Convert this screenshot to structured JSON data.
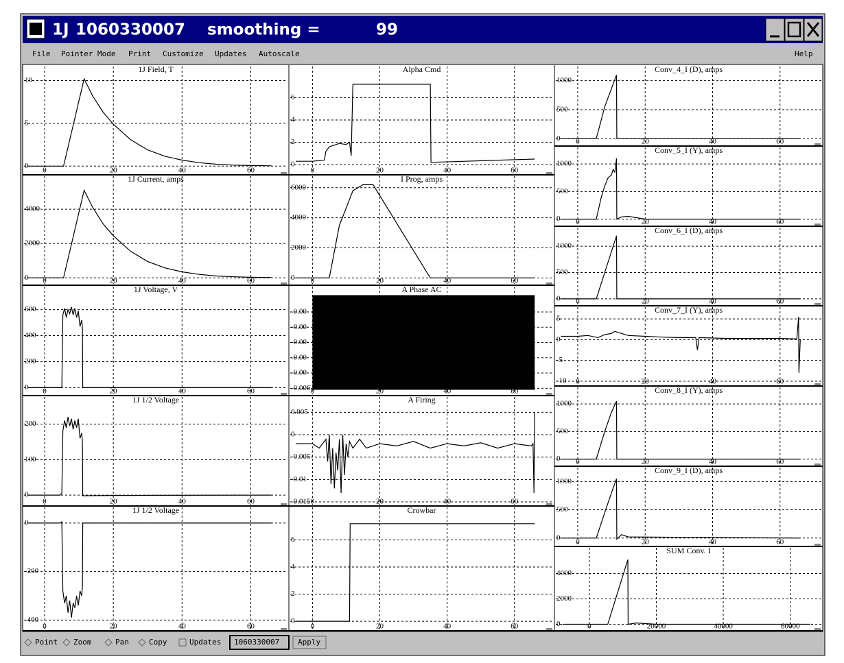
{
  "window": {
    "title": [
      "1J",
      "1060330007",
      "smoothing =",
      "99"
    ]
  },
  "menu": [
    "File",
    "Pointer Mode",
    "Print",
    "Customize",
    "Updates",
    "Autoscale",
    "Help"
  ],
  "toolbar": {
    "options": [
      "Point",
      "Zoom",
      "Pan",
      "Copy"
    ],
    "checkbox": "Updates",
    "input": "1060330007",
    "button": "Apply"
  },
  "chart_data": [
    {
      "type": "line",
      "title": "1J Field, T",
      "xlim": [
        -6,
        67.5
      ],
      "ylim": [
        -0.7,
        11
      ],
      "xticks": [
        0,
        20,
        40,
        60
      ],
      "yticks": [
        0,
        5,
        10
      ],
      "grid": true,
      "series": [
        {
          "color": "#000000",
          "x": [
            -5,
            5.5,
            11.5,
            14,
            17,
            20,
            25,
            30,
            35,
            40,
            45,
            50,
            55,
            60,
            66
          ],
          "values": [
            0,
            0,
            10.2,
            8.2,
            6.3,
            4.9,
            3.1,
            1.9,
            1.15,
            0.7,
            0.4,
            0.22,
            0.12,
            0.07,
            0.04
          ]
        }
      ]
    },
    {
      "type": "line",
      "title": "1J Current, amps",
      "xlim": [
        -6,
        67.5
      ],
      "ylim": [
        -270,
        5600
      ],
      "xticks": [
        0,
        20,
        40,
        60
      ],
      "yticks": [
        0,
        2000,
        4000
      ],
      "grid": true,
      "series": [
        {
          "color": "#000000",
          "x": [
            -5,
            5.5,
            11.5,
            14,
            17,
            20,
            25,
            30,
            35,
            40,
            45,
            50,
            55,
            60,
            66
          ],
          "values": [
            0,
            0,
            5100,
            4100,
            3150,
            2450,
            1550,
            950,
            580,
            350,
            200,
            110,
            60,
            35,
            20
          ]
        }
      ]
    },
    {
      "type": "line",
      "title": "1J Voltage, V",
      "xlim": [
        -6,
        67.5
      ],
      "ylim": [
        -40,
        735
      ],
      "xticks": [
        0,
        20,
        40,
        60
      ],
      "yticks": [
        0,
        200,
        400,
        600
      ],
      "grid": true,
      "series": [
        {
          "color": "#000000",
          "x": [
            -5,
            5,
            5.3,
            5.8,
            6.3,
            6.8,
            7.3,
            7.8,
            8.3,
            8.8,
            9.3,
            9.8,
            10.3,
            10.8,
            11,
            11.1,
            66
          ],
          "values": [
            0,
            0,
            560,
            610,
            540,
            600,
            570,
            620,
            560,
            610,
            540,
            590,
            470,
            520,
            460,
            0,
            0
          ]
        }
      ]
    },
    {
      "type": "line",
      "title": "1J 1/2 Voltage",
      "xlim": [
        -6,
        67.5
      ],
      "ylim": [
        -23,
        261
      ],
      "xticks": [
        0,
        20,
        40,
        60
      ],
      "yticks": [
        0,
        100,
        200
      ],
      "grid": true,
      "series": [
        {
          "color": "#000000",
          "x": [
            -5,
            4.5,
            5,
            5.3,
            5.8,
            6.3,
            6.8,
            7.3,
            7.8,
            8.3,
            8.8,
            9.3,
            9.8,
            10.3,
            10.8,
            11,
            11.1,
            20,
            66
          ],
          "values": [
            0,
            0,
            5,
            180,
            210,
            190,
            220,
            195,
            215,
            185,
            210,
            190,
            215,
            160,
            175,
            150,
            -2,
            -1,
            0
          ]
        }
      ]
    },
    {
      "type": "line",
      "title": "1J 1/2 Voltage",
      "xlim": [
        -6,
        67.5
      ],
      "ylim": [
        -433,
        42
      ],
      "xticks": [
        0,
        20,
        40,
        60
      ],
      "yticks": [
        -400,
        -200,
        0
      ],
      "grid": true,
      "series": [
        {
          "color": "#000000",
          "x": [
            -5,
            4.5,
            5,
            5.3,
            5.8,
            6.3,
            6.8,
            7.3,
            7.8,
            8.3,
            8.8,
            9.3,
            9.8,
            10.3,
            10.8,
            11,
            11.1,
            66
          ],
          "values": [
            0,
            0,
            5,
            -280,
            -330,
            -300,
            -370,
            -320,
            -390,
            -330,
            -350,
            -300,
            -340,
            -280,
            -300,
            -260,
            0,
            0
          ]
        }
      ]
    },
    {
      "type": "line",
      "title": "Alpha Cmd",
      "xlim": [
        -6.6,
        68.2
      ],
      "ylim": [
        -0.67,
        8.3
      ],
      "xticks": [
        0,
        20,
        40,
        60
      ],
      "yticks": [
        0,
        2,
        4,
        6
      ],
      "grid": true,
      "series": [
        {
          "color": "#000000",
          "x": [
            -5,
            0,
            3.5,
            4,
            5,
            6,
            8,
            10,
            11,
            11.5,
            12,
            35,
            35.2,
            66
          ],
          "values": [
            0.3,
            0.3,
            0.4,
            1.2,
            1.6,
            1.7,
            1.9,
            1.8,
            2,
            0.8,
            7.2,
            7.2,
            0.2,
            0.5
          ]
        }
      ]
    },
    {
      "type": "line",
      "title": "I Prog, amps",
      "xlim": [
        -6.6,
        68.2
      ],
      "ylim": [
        -300,
        6400
      ],
      "xticks": [
        0,
        20,
        40,
        60
      ],
      "yticks": [
        0,
        2000,
        4000,
        6000
      ],
      "grid": true,
      "series": [
        {
          "color": "#000000",
          "x": [
            -5,
            5,
            8,
            12,
            15,
            18,
            35,
            66
          ],
          "values": [
            0,
            0,
            3500,
            5800,
            6200,
            6200,
            0,
            0
          ]
        }
      ]
    },
    {
      "type": "band",
      "title": "A Phase AC",
      "xlim": [
        -6.6,
        68.2
      ],
      "ylim": [
        -0.0063,
        0.0003
      ],
      "xticks": [
        0,
        20,
        40,
        60
      ],
      "yticks": [
        {
          "value": -0.001,
          "label": "-0.00"
        },
        {
          "value": -0.002,
          "label": "-0.00"
        },
        {
          "value": -0.003,
          "label": "-0.00"
        },
        {
          "value": -0.004,
          "label": "-0.00"
        },
        {
          "value": -0.005,
          "label": "-0.00"
        },
        -0.006
      ],
      "grid": true,
      "series": [
        {
          "color": "#000000",
          "x": [
            0,
            66
          ],
          "upper": [
            0.0001,
            0.0001
          ],
          "lower": [
            -0.0061,
            -0.0061
          ]
        }
      ]
    },
    {
      "type": "line",
      "title": "A Firing",
      "xlim": [
        -6.6,
        68.2
      ],
      "ylim": [
        -0.0153,
        0.0072
      ],
      "xticks": [
        0,
        20,
        40,
        60
      ],
      "yticks": [
        -0.015,
        -0.01,
        -0.005,
        0,
        0.005
      ],
      "grid": true,
      "series": [
        {
          "color": "#000000",
          "x": [
            -5,
            0,
            2,
            4,
            4.5,
            5,
            5.5,
            6,
            6.5,
            7,
            7.5,
            8,
            8.5,
            9,
            9.5,
            10,
            10.5,
            11,
            12,
            14,
            16,
            20,
            25,
            30,
            35,
            40,
            45,
            50,
            55,
            60,
            65,
            65.5,
            65.8,
            66
          ],
          "values": [
            -0.002,
            -0.002,
            -0.003,
            -0.001,
            -0.006,
            0,
            -0.011,
            -0.003,
            -0.012,
            -0.004,
            -0.008,
            -0.001,
            -0.013,
            0,
            -0.009,
            -0.002,
            -0.005,
            -0.0015,
            -0.003,
            -0.001,
            -0.003,
            -0.002,
            -0.0025,
            -0.0015,
            -0.003,
            -0.002,
            -0.0025,
            -0.0018,
            -0.003,
            -0.002,
            -0.0025,
            -0.002,
            -0.013,
            0.005
          ]
        }
      ]
    },
    {
      "type": "line",
      "title": "Crowbar",
      "xlim": [
        -6.6,
        68.2
      ],
      "ylim": [
        -0.5,
        8
      ],
      "xticks": [
        0,
        20,
        40,
        60
      ],
      "yticks": [
        0,
        2,
        4,
        6
      ],
      "grid": true,
      "series": [
        {
          "color": "#000000",
          "x": [
            -5,
            11,
            11.2,
            66
          ],
          "values": [
            0,
            0,
            7.2,
            7.2
          ]
        }
      ]
    },
    {
      "type": "line",
      "title": "Conv_4_I (D), amps",
      "xlim": [
        -6.5,
        69
      ],
      "ylim": [
        -80,
        1150
      ],
      "xticks": [
        0,
        20,
        40,
        60
      ],
      "yticks": [
        0,
        500,
        1000
      ],
      "grid": true,
      "series": [
        {
          "color": "#000000",
          "x": [
            -5,
            5.5,
            8,
            11.5,
            11.6,
            66
          ],
          "values": [
            0,
            0,
            550,
            1100,
            0,
            0
          ]
        }
      ]
    },
    {
      "type": "line",
      "title": "Conv_5_I (Y), amps",
      "xlim": [
        -6.5,
        69
      ],
      "ylim": [
        -80,
        1200
      ],
      "xticks": [
        0,
        20,
        40,
        60
      ],
      "yticks": [
        0,
        500,
        1000
      ],
      "grid": true,
      "series": [
        {
          "color": "#000000",
          "x": [
            -5,
            5.5,
            7,
            8,
            9,
            10,
            10.5,
            11,
            11.4,
            11.5,
            11.6,
            13,
            15,
            20,
            66
          ],
          "values": [
            0,
            0,
            400,
            600,
            750,
            800,
            900,
            850,
            1050,
            1100,
            0,
            40,
            50,
            0,
            0
          ]
        }
      ]
    },
    {
      "type": "line",
      "title": "Conv_6_I (D), amps",
      "xlim": [
        -6.5,
        69
      ],
      "ylim": [
        -80,
        1250
      ],
      "xticks": [
        0,
        20,
        40,
        60
      ],
      "yticks": [
        0,
        500,
        1000
      ],
      "grid": true,
      "series": [
        {
          "color": "#000000",
          "x": [
            -5,
            5.5,
            11.5,
            11.6,
            66
          ],
          "values": [
            0,
            0,
            1200,
            0,
            0
          ]
        }
      ]
    },
    {
      "type": "line",
      "title": "Conv_7_I (Y), amps",
      "xlim": [
        -6.5,
        69
      ],
      "ylim": [
        -10.5,
        6.5
      ],
      "xticks": [
        0,
        20,
        40,
        60
      ],
      "yticks": [
        -10,
        -5,
        0,
        5
      ],
      "grid": true,
      "series": [
        {
          "color": "#000000",
          "x": [
            -5,
            0,
            3,
            6,
            8,
            10,
            11,
            13,
            15,
            20,
            25,
            30,
            35,
            35.5,
            36,
            40,
            45,
            50,
            55,
            60,
            65,
            65.5,
            65.6,
            66
          ],
          "values": [
            0.8,
            0.8,
            1,
            0.5,
            1.2,
            1.5,
            2,
            1.5,
            1,
            0.8,
            0.6,
            0.5,
            0.5,
            -2.5,
            0.5,
            0.4,
            0.3,
            0.3,
            0.3,
            0.3,
            0.2,
            5.5,
            -8,
            0
          ]
        }
      ]
    },
    {
      "type": "line",
      "title": "Conv_8_I (Y), amps",
      "xlim": [
        -6.5,
        69
      ],
      "ylim": [
        -80,
        1200
      ],
      "xticks": [
        0,
        20,
        40,
        60
      ],
      "yticks": [
        0,
        500,
        1000
      ],
      "grid": true,
      "series": [
        {
          "color": "#000000",
          "x": [
            -5,
            5.5,
            8,
            10,
            11.5,
            11.6,
            66
          ],
          "values": [
            0,
            0,
            500,
            850,
            1050,
            0,
            0
          ]
        }
      ]
    },
    {
      "type": "line",
      "title": "Conv_9_I (D), amps",
      "xlim": [
        -6.5,
        69
      ],
      "ylim": [
        -100,
        1150
      ],
      "xticks": [
        0,
        20,
        40,
        60
      ],
      "yticks": [
        0,
        500,
        1000
      ],
      "grid": true,
      "series": [
        {
          "color": "#000000",
          "x": [
            -5,
            5.5,
            8,
            10,
            11.5,
            11.6,
            13,
            15,
            66
          ],
          "values": [
            0,
            0,
            450,
            800,
            1050,
            -20,
            60,
            20,
            0
          ]
        }
      ]
    },
    {
      "type": "line",
      "title": "SUM Conv. I",
      "xlim": [
        -10000,
        66000
      ],
      "ylim": [
        -300,
        5600
      ],
      "xticks": [
        0,
        20000,
        40000,
        60000
      ],
      "yticks": [
        0,
        2000,
        4000
      ],
      "grid": true,
      "series": [
        {
          "color": "#000000",
          "x": [
            -8000,
            5500,
            11500,
            11600,
            14000,
            20000,
            66000
          ],
          "values": [
            0,
            0,
            5100,
            0,
            100,
            0,
            0
          ]
        }
      ]
    }
  ]
}
